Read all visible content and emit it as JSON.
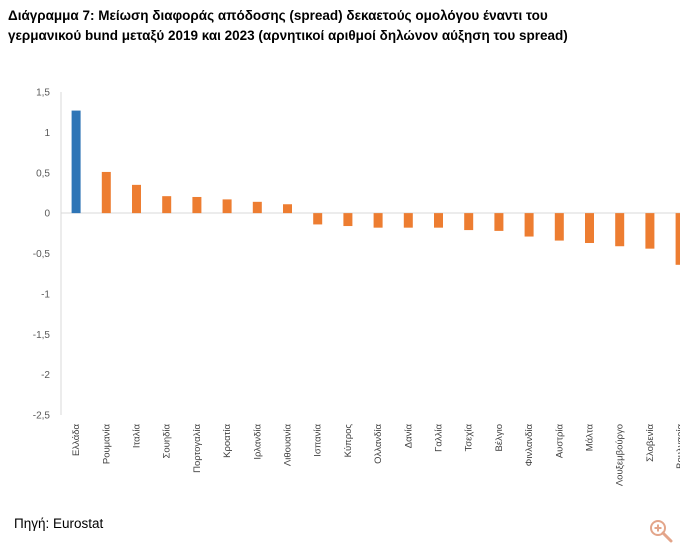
{
  "chart_data": {
    "type": "bar",
    "title": "Διάγραμμα 7: Μείωση διαφοράς απόδοσης (spread) δεκαετούς ομολόγου έναντι του γερμανικού bund μεταξύ 2019 και 2023 (αρνητικοί αριθμοί δηλώνον αύξηση του spread)",
    "categories": [
      "Ελλάδα",
      "Ρουμανία",
      "Ιταλία",
      "Σουηδία",
      "Πορτογαλία",
      "Κροατία",
      "Ιρλανδία",
      "Λιθουανία",
      "Ισπανία",
      "Κύπρος",
      "Ολλανδία",
      "Δανία",
      "Γαλλία",
      "Τσεχία",
      "Βέλγιο",
      "Φινλανδία",
      "Αυστρία",
      "Μάλτα",
      "Λουξεμβούργο",
      "Σλοβενία",
      "Βουλγαρία"
    ],
    "values": [
      1.27,
      0.51,
      0.35,
      0.21,
      0.2,
      0.17,
      0.14,
      0.11,
      -0.14,
      -0.16,
      -0.18,
      -0.18,
      -0.18,
      -0.21,
      -0.22,
      -0.29,
      -0.34,
      -0.37,
      -0.41,
      -0.44,
      -0.64
    ],
    "highlight_color": "#2E75B6",
    "bar_color": "#ED7D31",
    "ylim": [
      -2.5,
      1.5
    ],
    "yticks": [
      1.5,
      1,
      0.5,
      0,
      -0.5,
      -1,
      -1.5,
      -2,
      -2.5
    ],
    "ytick_labels": [
      "1,5",
      "1",
      "0,5",
      "0",
      "-0,5",
      "-1",
      "-1,5",
      "-2",
      "-2,5"
    ],
    "xlabel": "",
    "ylabel": "",
    "grid": false,
    "legend": "none"
  },
  "footer": {
    "source": "Πηγή: Eurostat"
  },
  "controls": {
    "zoom_icon": "zoom-in-icon"
  }
}
